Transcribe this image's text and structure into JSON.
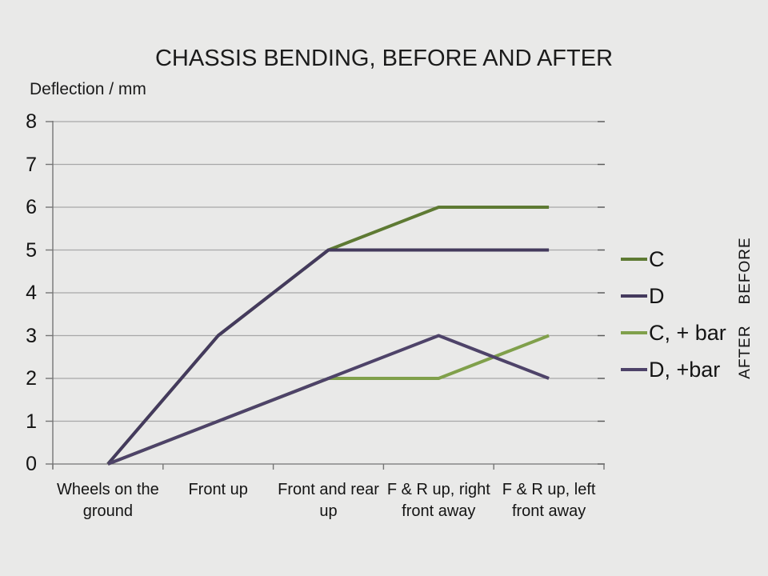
{
  "colors": {
    "background": "#e9e9e8",
    "gridline": "#a8a8a8",
    "axis": "#757575",
    "gridline_end_tick": "#5a5a5a",
    "text": "#141414"
  },
  "chart_data": {
    "type": "line",
    "title": "CHASSIS BENDING, BEFORE AND AFTER",
    "y_axis_title": "Deflection / mm",
    "xlabel": "",
    "ylabel": "Deflection / mm",
    "categories": [
      "Wheels on the ground",
      "Front up",
      "Front and rear up",
      "F & R up, right front away",
      "F & R up, left front away"
    ],
    "y_ticks": [
      0,
      1,
      2,
      3,
      4,
      5,
      6,
      7,
      8
    ],
    "ylim": [
      0,
      8
    ],
    "grid": "horizontal",
    "legend_position": "right",
    "series": [
      {
        "name": "C",
        "color": "#5e7a33",
        "values": [
          0,
          3,
          5,
          6,
          6
        ]
      },
      {
        "name": "D",
        "color": "#443a5d",
        "values": [
          0,
          3,
          5,
          5,
          5
        ]
      },
      {
        "name": "C, + bar",
        "color": "#80a04b",
        "values": [
          0,
          1,
          2,
          2,
          3
        ]
      },
      {
        "name": "D, +bar",
        "color": "#4e4369",
        "values": [
          0,
          1,
          2,
          3,
          2
        ]
      }
    ],
    "annotations": {
      "before": "BEFORE",
      "after": "AFTER"
    }
  }
}
